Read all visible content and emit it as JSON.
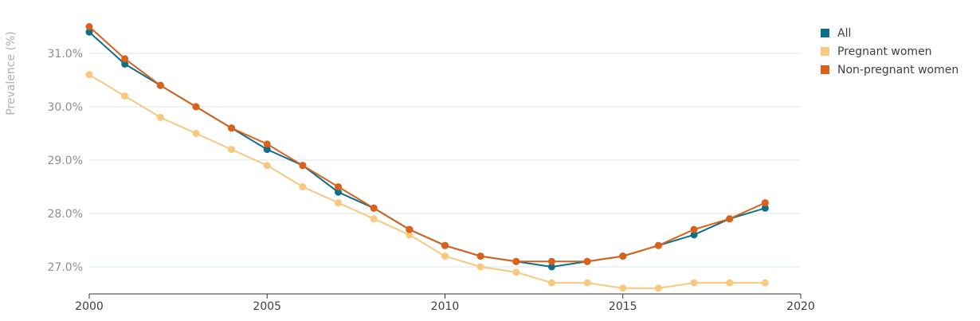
{
  "chart_data": {
    "type": "line",
    "ylabel": "Prevalence (%)",
    "xlabel": "",
    "x": [
      2000,
      2001,
      2002,
      2003,
      2004,
      2005,
      2006,
      2007,
      2008,
      2009,
      2010,
      2011,
      2012,
      2013,
      2014,
      2015,
      2016,
      2017,
      2018,
      2019
    ],
    "xlim": [
      2000,
      2020
    ],
    "ylim": [
      26.5,
      31.5
    ],
    "x_ticks": [
      "2000",
      "2005",
      "2010",
      "2015",
      "2020"
    ],
    "y_ticks": [
      "27.0%",
      "28.0%",
      "29.0%",
      "30.0%",
      "31.0%"
    ],
    "grid": "horizontal",
    "legend_position": "top-right",
    "series": [
      {
        "name": "All",
        "color": "#0e6f8b",
        "values": [
          31.4,
          30.8,
          30.4,
          30.0,
          29.6,
          29.2,
          28.9,
          28.4,
          28.1,
          27.7,
          27.4,
          27.2,
          27.1,
          27.0,
          27.1,
          27.2,
          27.4,
          27.6,
          27.9,
          28.1
        ]
      },
      {
        "name": "Pregnant women",
        "color": "#f9c87e",
        "values": [
          30.6,
          30.2,
          29.8,
          29.5,
          29.2,
          28.9,
          28.5,
          28.2,
          27.9,
          27.6,
          27.2,
          27.0,
          26.9,
          26.7,
          26.7,
          26.6,
          26.6,
          26.7,
          26.7,
          26.7
        ]
      },
      {
        "name": "Non-pregnant women",
        "color": "#d9611a",
        "values": [
          31.5,
          30.9,
          30.4,
          30.0,
          29.6,
          29.3,
          28.9,
          28.5,
          28.1,
          27.7,
          27.4,
          27.2,
          27.1,
          27.1,
          27.1,
          27.2,
          27.4,
          27.7,
          27.9,
          28.2
        ]
      }
    ]
  }
}
